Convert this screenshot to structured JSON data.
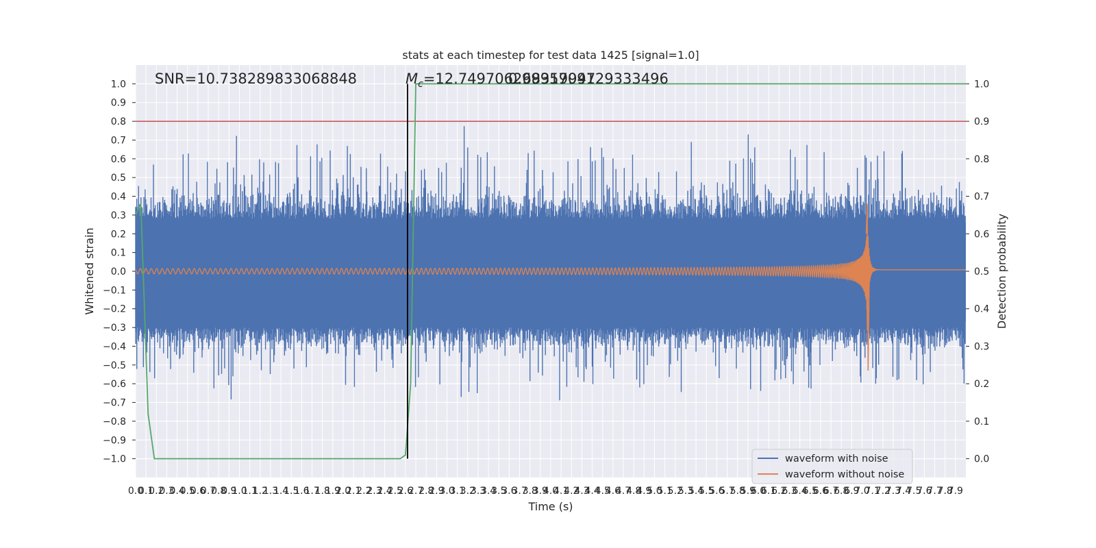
{
  "chart_data": {
    "type": "line",
    "title": "stats at each timestep for test data 1425 [signal=1.0]",
    "xlabel": "Time (s)",
    "ylabel": "Whitened strain",
    "y2label": "Detection probability",
    "xlim": [
      0.0,
      8.0
    ],
    "ylim": [
      -1.1,
      1.1
    ],
    "y2lim": [
      -0.05,
      1.05
    ],
    "x_ticks": [
      0.0,
      0.1,
      0.2,
      0.3,
      0.4,
      0.5,
      0.6,
      0.7,
      0.8,
      0.9,
      1.0,
      1.1,
      1.2,
      1.3,
      1.4,
      1.5,
      1.6,
      1.7,
      1.8,
      1.9,
      2.0,
      2.1,
      2.2,
      2.3,
      2.4,
      2.5,
      2.6,
      2.7,
      2.8,
      2.9,
      3.0,
      3.1,
      3.2,
      3.3,
      3.4,
      3.5,
      3.6,
      3.7,
      3.8,
      3.9,
      4.0,
      4.1,
      4.2,
      4.3,
      4.4,
      4.5,
      4.6,
      4.7,
      4.8,
      4.9,
      5.0,
      5.1,
      5.2,
      5.3,
      5.4,
      5.5,
      5.6,
      5.7,
      5.8,
      5.9,
      6.0,
      6.1,
      6.2,
      6.3,
      6.4,
      6.5,
      6.6,
      6.7,
      6.8,
      6.9,
      7.0,
      7.1,
      7.2,
      7.3,
      7.4,
      7.5,
      7.6,
      7.7,
      7.8,
      7.9
    ],
    "x_tick_labels": [
      "0.0",
      "0.1",
      "0.2",
      "0.3",
      "0.4",
      "0.5",
      "0.6",
      "0.7",
      "0.8",
      "0.9",
      "1.0",
      "1.1",
      "1.2",
      "1.3",
      "1.4",
      "1.5",
      "1.6",
      "1.7",
      "1.8",
      "1.9",
      "2.0",
      "2.1",
      "2.2",
      "2.3",
      "2.4",
      "2.5",
      "2.6",
      "2.7",
      "2.8",
      "2.9",
      "3.0",
      "3.1",
      "3.2",
      "3.3",
      "3.4",
      "3.5",
      "3.6",
      "3.7",
      "3.8",
      "3.9",
      "4.0",
      "4.1",
      "4.2",
      "4.3",
      "4.4",
      "4.5",
      "4.6",
      "4.7",
      "4.8",
      "4.9",
      "5.0",
      "5.1",
      "5.2",
      "5.3",
      "5.4",
      "5.5",
      "5.6",
      "5.7",
      "5.8",
      "5.9",
      "6.0",
      "6.1",
      "6.2",
      "6.3",
      "6.4",
      "6.5",
      "6.6",
      "6.7",
      "6.8",
      "6.9",
      "7.0",
      "7.1",
      "7.2",
      "7.3",
      "7.4",
      "7.5",
      "7.6",
      "7.7",
      "7.8",
      "7.9"
    ],
    "y_ticks": [
      1.0,
      0.9,
      0.8,
      0.7,
      0.6,
      0.5,
      0.4,
      0.3,
      0.2,
      0.1,
      0.0,
      -0.1,
      -0.2,
      -0.3,
      -0.4,
      -0.5,
      -0.6,
      -0.7,
      -0.8,
      -0.9,
      -1.0
    ],
    "y_tick_labels": [
      "1.0",
      "0.9",
      "0.8",
      "0.7",
      "0.6",
      "0.5",
      "0.4",
      "0.3",
      "0.2",
      "0.1",
      "0.0",
      "−0.1",
      "−0.2",
      "−0.3",
      "−0.4",
      "−0.5",
      "−0.6",
      "−0.7",
      "−0.8",
      "−0.9",
      "−1.0"
    ],
    "y2_ticks": [
      1.0,
      0.9,
      0.8,
      0.7,
      0.6,
      0.5,
      0.4,
      0.3,
      0.2,
      0.1,
      0.0
    ],
    "y2_tick_labels": [
      "1.0",
      "0.9",
      "0.8",
      "0.7",
      "0.6",
      "0.5",
      "0.4",
      "0.3",
      "0.2",
      "0.1",
      "0.0"
    ],
    "grid": true,
    "legend_position": "bottom-right",
    "series": [
      {
        "name": "waveform with noise",
        "color": "#4c72b0",
        "kind": "noise",
        "typical_envelope": [
          -0.45,
          0.5
        ],
        "x_range": [
          0.0,
          8.0
        ]
      },
      {
        "name": "waveform without noise",
        "color": "#dd8452",
        "kind": "chirp",
        "x_range": [
          0.0,
          8.0
        ],
        "merger_time": 7.05,
        "peak_amplitude": 0.36,
        "min_amplitude": -0.53
      }
    ],
    "probability_line": {
      "color": "#55a868",
      "x": [
        0.0,
        0.05,
        0.12,
        0.18,
        2.55,
        2.6,
        2.65,
        2.7,
        8.0
      ],
      "y": [
        0.65,
        0.68,
        0.12,
        0.0,
        0.0,
        0.01,
        0.2,
        1.0,
        1.0
      ]
    },
    "threshold_line": {
      "color": "#c44e52",
      "y2": 0.9
    },
    "event_marker": {
      "color": "#000000",
      "x": 2.62,
      "y_range": [
        -1.0,
        1.0
      ]
    },
    "annotations": [
      {
        "text": "SNR=10.738289833068848",
        "x": 0.2,
        "y": 1.0
      },
      {
        "text": "=12.749706268319947",
        "x": 2.6,
        "y": 1.0
      },
      {
        "text": "0.9995709129333496",
        "x": 3.65,
        "y": 1.0
      }
    ],
    "mc_symbol": "M",
    "mc_subscript": "c"
  }
}
